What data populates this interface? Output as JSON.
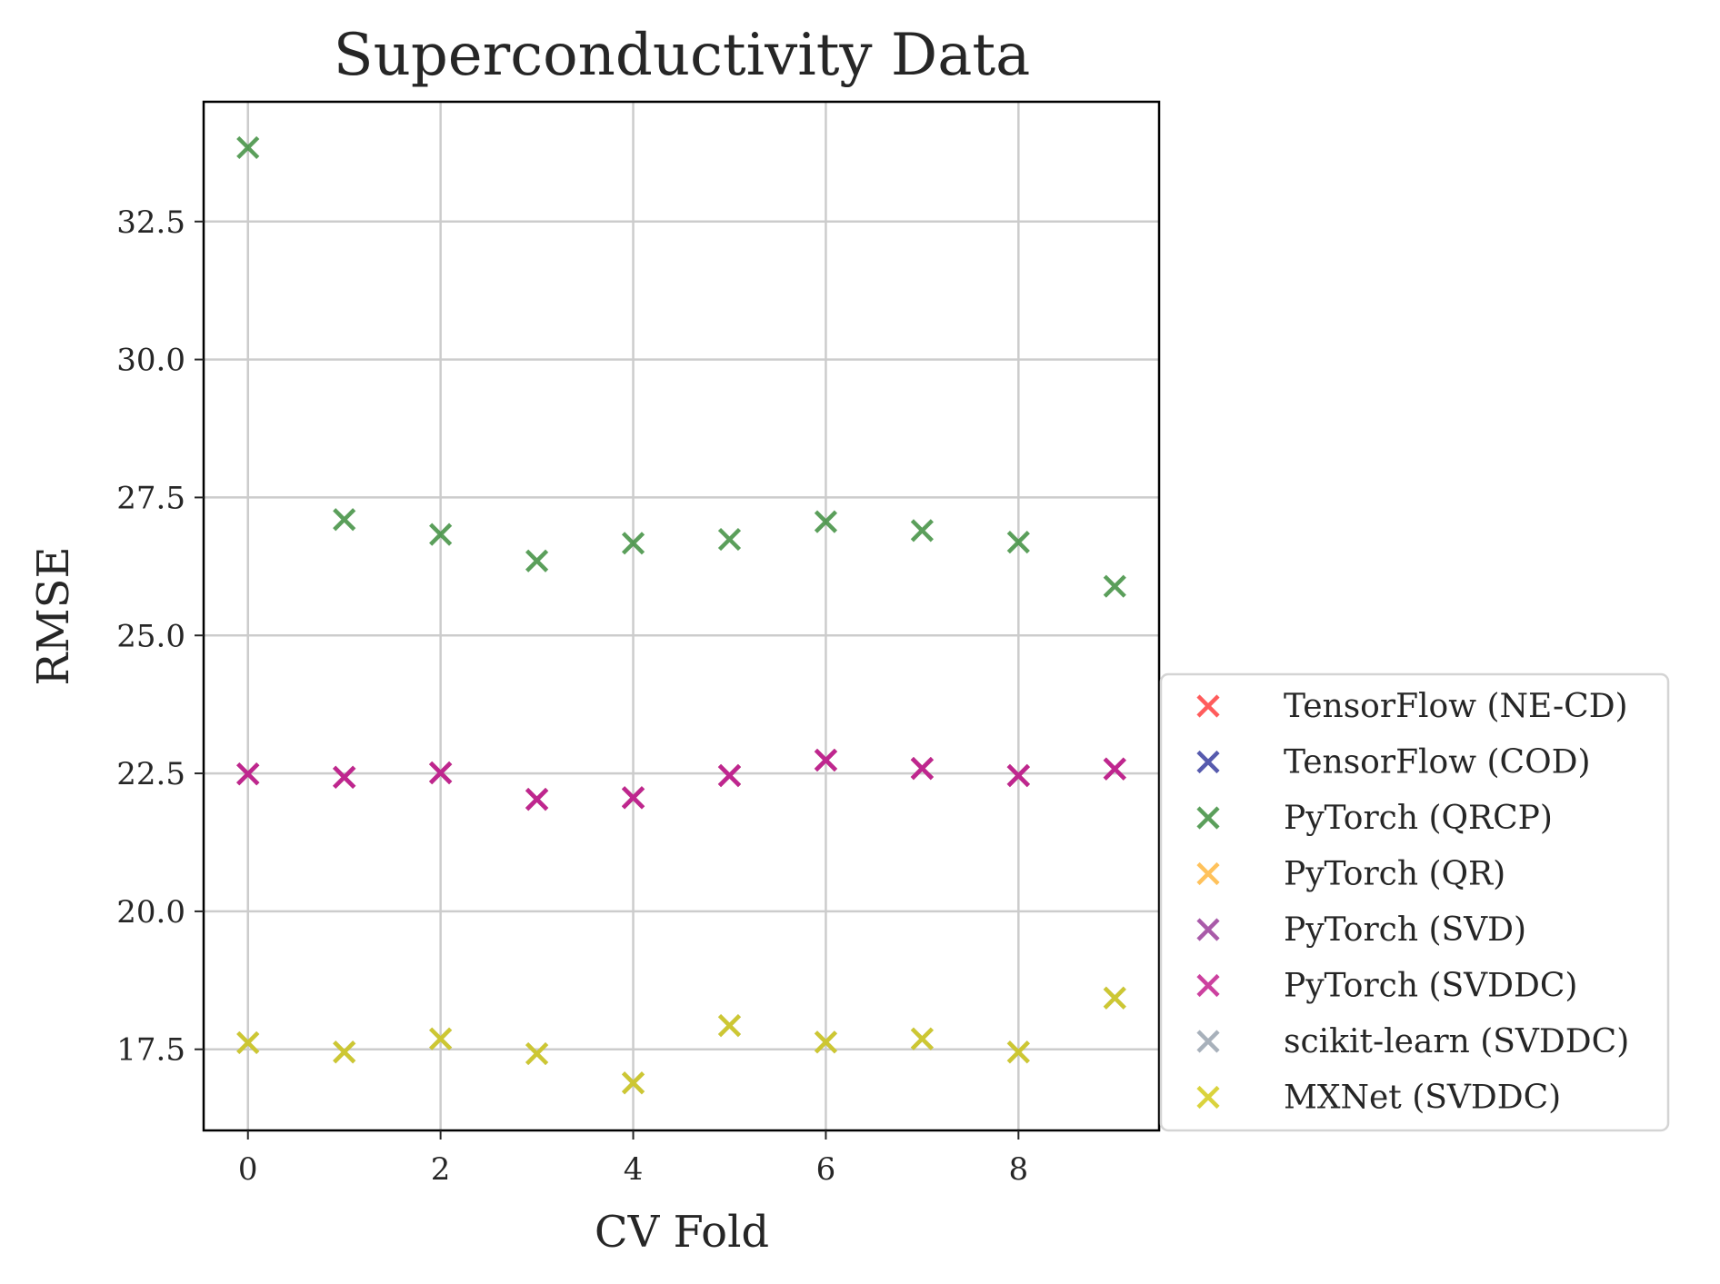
{
  "chart_data": {
    "type": "scatter",
    "title": "Superconductivity Data",
    "xlabel": "CV Fold",
    "ylabel": "RMSE",
    "x": [
      0,
      1,
      2,
      3,
      4,
      5,
      6,
      7,
      8,
      9
    ],
    "xlim": [
      -0.46,
      9.46
    ],
    "ylim": [
      16.03,
      34.67
    ],
    "xticks": [
      "0",
      "2",
      "4",
      "6",
      "8"
    ],
    "yticks": [
      "17.5",
      "20.0",
      "22.5",
      "25.0",
      "27.5",
      "30.0",
      "32.5"
    ],
    "grid": true,
    "marker": "x",
    "legend_position": "lower-right, outside the axes",
    "series": [
      {
        "name": "TensorFlow (NE-CD)",
        "color": "#ff4040",
        "values": [
          22.49,
          22.43,
          22.51,
          22.03,
          22.06,
          22.46,
          22.74,
          22.59,
          22.46,
          22.58
        ]
      },
      {
        "name": "TensorFlow (COD)",
        "color": "#3a3fa0",
        "values": [
          22.49,
          22.43,
          22.51,
          22.03,
          22.06,
          22.46,
          22.74,
          22.59,
          22.46,
          22.58
        ]
      },
      {
        "name": "PyTorch (QRCP)",
        "color": "#3f8f3f",
        "values": [
          33.84,
          27.1,
          26.83,
          26.35,
          26.67,
          26.74,
          27.06,
          26.9,
          26.69,
          25.89
        ]
      },
      {
        "name": "PyTorch (QR)",
        "color": "#ffb840",
        "values": [
          22.49,
          22.43,
          22.51,
          22.03,
          22.06,
          22.46,
          22.74,
          22.59,
          22.46,
          22.58
        ]
      },
      {
        "name": "PyTorch (SVD)",
        "color": "#9b3f9b",
        "values": [
          22.49,
          22.43,
          22.51,
          22.03,
          22.06,
          22.46,
          22.74,
          22.59,
          22.46,
          22.58
        ]
      },
      {
        "name": "PyTorch (SVDDC)",
        "color": "#c4208f",
        "values": [
          22.49,
          22.43,
          22.51,
          22.03,
          22.06,
          22.46,
          22.74,
          22.59,
          22.46,
          22.58
        ]
      },
      {
        "name": "scikit-learn (SVDDC)",
        "color": "#9aa4b0",
        "values": [
          17.62,
          17.45,
          17.69,
          17.42,
          16.89,
          17.93,
          17.63,
          17.69,
          17.45,
          18.43
        ]
      },
      {
        "name": "MXNet (SVDDC)",
        "color": "#d4cc1c",
        "values": [
          17.62,
          17.45,
          17.69,
          17.42,
          16.89,
          17.93,
          17.63,
          17.69,
          17.45,
          18.43
        ]
      }
    ]
  }
}
